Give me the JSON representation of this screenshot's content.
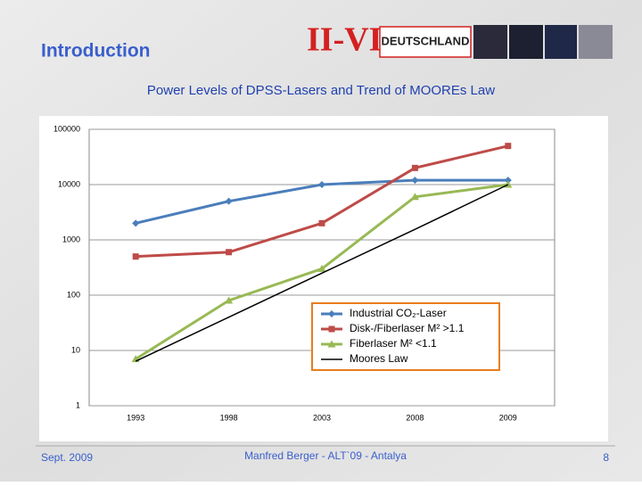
{
  "slide": {
    "title": "Introduction",
    "logo_mark": "II-VI",
    "logo_text": "DEUTSCHLAND",
    "date": "Sept. 2009",
    "author": "Manfred Berger  - ALT`09 - Antalya",
    "page": "8"
  },
  "chart_data": {
    "type": "line",
    "title": "Power Levels of DPSS-Lasers and Trend of MOOREs Law",
    "categories": [
      "1993",
      "1998",
      "2003",
      "2008",
      "2009"
    ],
    "series": [
      {
        "name": "Industrial CO₂-Laser",
        "color": "#4a7ebb",
        "marker": "diamond",
        "values": [
          2000,
          5000,
          10000,
          12000,
          12000
        ]
      },
      {
        "name": "Disk-/Fiberlaser M² >1.1",
        "color": "#be4b48",
        "marker": "square",
        "values": [
          500,
          600,
          2000,
          20000,
          50000
        ]
      },
      {
        "name": "Fiberlaser M² <1.1",
        "color": "#98b954",
        "marker": "triangle",
        "values": [
          7,
          80,
          300,
          6000,
          10000
        ]
      },
      {
        "name": "Moores Law",
        "color": "#000000",
        "marker": "none",
        "values": [
          6.4,
          40,
          250,
          1550,
          10000
        ]
      }
    ],
    "log_scale": true,
    "ylim": [
      1,
      100000
    ],
    "yticks": [
      1,
      10,
      100,
      1000,
      10000,
      100000
    ],
    "grid": true,
    "legend": "bottom-right"
  }
}
